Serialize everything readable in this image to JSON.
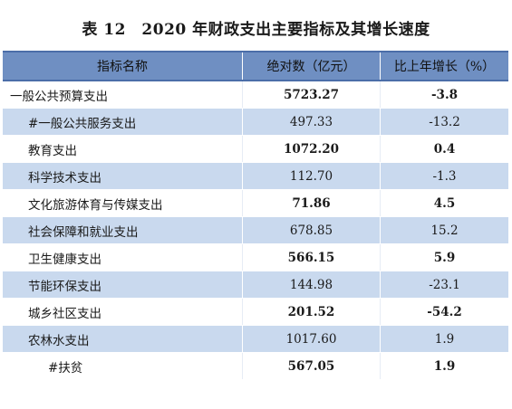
{
  "title": "表 12　2020 年财政支出主要指标及其增长速度",
  "headers": {
    "name": "指标名称",
    "absolute": "绝对数（亿元）",
    "growth": "比上年增长（%）"
  },
  "rows": [
    {
      "name": "一般公共预算支出",
      "absolute": "5723.27",
      "growth": "-3.8"
    },
    {
      "name": "#一般公共服务支出",
      "absolute": "497.33",
      "growth": "-13.2"
    },
    {
      "name": "教育支出",
      "absolute": "1072.20",
      "growth": "0.4"
    },
    {
      "name": "科学技术支出",
      "absolute": "112.70",
      "growth": "-1.3"
    },
    {
      "name": "文化旅游体育与传媒支出",
      "absolute": "71.86",
      "growth": "4.5"
    },
    {
      "name": "社会保障和就业支出",
      "absolute": "678.85",
      "growth": "15.2"
    },
    {
      "name": "卫生健康支出",
      "absolute": "566.15",
      "growth": "5.9"
    },
    {
      "name": "节能环保支出",
      "absolute": "144.98",
      "growth": "-23.1"
    },
    {
      "name": "城乡社区支出",
      "absolute": "201.52",
      "growth": "-54.2"
    },
    {
      "name": "农林水支出",
      "absolute": "1017.60",
      "growth": "1.9"
    },
    {
      "name": "#扶贫",
      "absolute": "567.05",
      "growth": "1.9"
    }
  ]
}
